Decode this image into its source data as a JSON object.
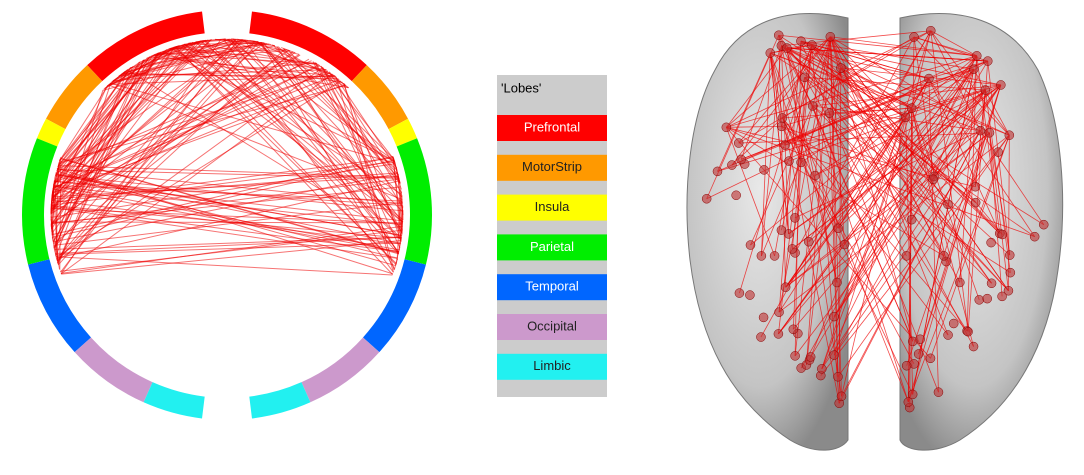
{
  "legend": {
    "title": "'Lobes'",
    "items": [
      {
        "label": "Prefrontal",
        "color": "#ff0000"
      },
      {
        "label": "MotorStrip",
        "color": "#ff9900"
      },
      {
        "label": "Insula",
        "color": "#ffff00"
      },
      {
        "label": "Parietal",
        "color": "#00ee00"
      },
      {
        "label": "Temporal",
        "color": "#0066ff"
      },
      {
        "label": "Occipital",
        "color": "#cc99cc"
      },
      {
        "label": "Limbic",
        "color": "#22f0f0"
      }
    ]
  }
}
